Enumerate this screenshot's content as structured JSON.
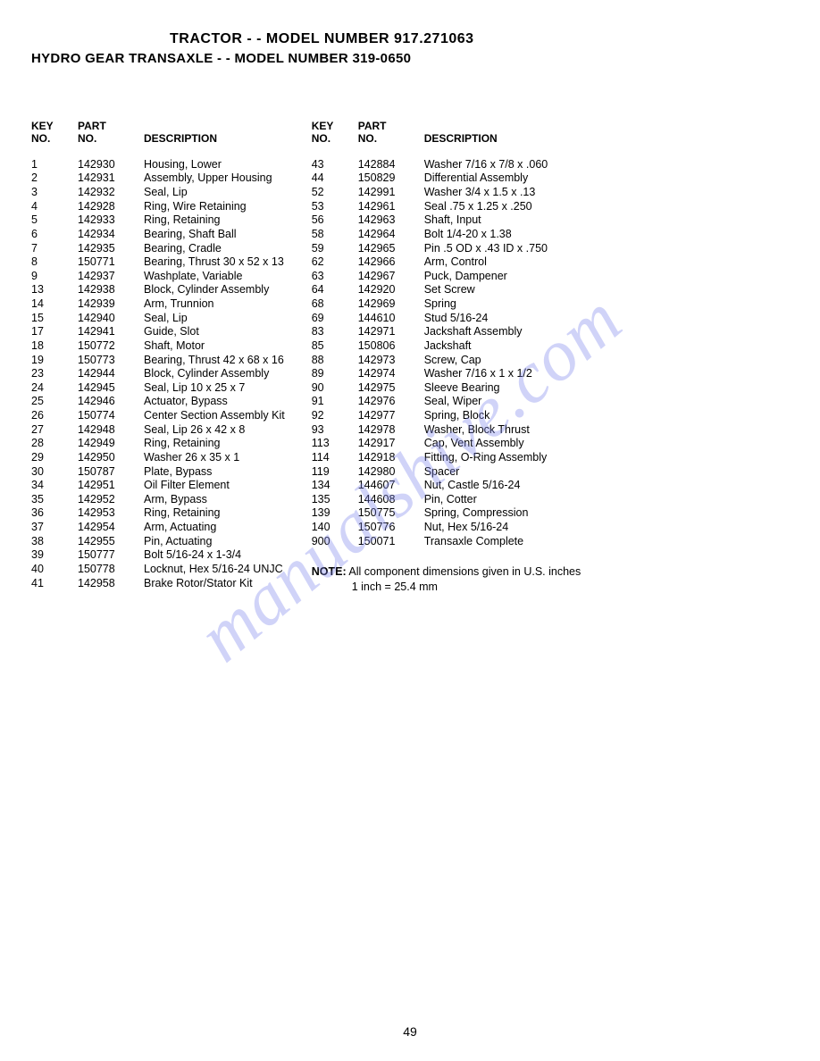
{
  "header": {
    "title1": "TRACTOR - - MODEL NUMBER 917.271063",
    "title2": "HYDRO GEAR TRANSAXLE - - MODEL NUMBER 319-0650"
  },
  "table": {
    "headers": {
      "key_line1": "KEY",
      "key_line2": "NO.",
      "part_line1": "PART",
      "part_line2": "NO.",
      "description": "DESCRIPTION"
    },
    "left_rows": [
      {
        "key": "1",
        "part": "142930",
        "desc": "Housing, Lower"
      },
      {
        "key": "2",
        "part": "142931",
        "desc": "Assembly, Upper Housing"
      },
      {
        "key": "3",
        "part": "142932",
        "desc": "Seal, Lip"
      },
      {
        "key": "4",
        "part": "142928",
        "desc": "Ring, Wire Retaining"
      },
      {
        "key": "5",
        "part": "142933",
        "desc": "Ring, Retaining"
      },
      {
        "key": "6",
        "part": "142934",
        "desc": "Bearing, Shaft Ball"
      },
      {
        "key": "7",
        "part": "142935",
        "desc": "Bearing, Cradle"
      },
      {
        "key": "8",
        "part": "150771",
        "desc": "Bearing, Thrust  30 x 52 x 13"
      },
      {
        "key": "9",
        "part": "142937",
        "desc": "Washplate, Variable"
      },
      {
        "key": "13",
        "part": "142938",
        "desc": "Block, Cylinder Assembly"
      },
      {
        "key": "14",
        "part": "142939",
        "desc": "Arm, Trunnion"
      },
      {
        "key": "15",
        "part": "142940",
        "desc": "Seal, Lip"
      },
      {
        "key": "17",
        "part": "142941",
        "desc": "Guide, Slot"
      },
      {
        "key": "18",
        "part": "150772",
        "desc": "Shaft, Motor"
      },
      {
        "key": "19",
        "part": "150773",
        "desc": "Bearing, Thrust  42 x 68 x 16"
      },
      {
        "key": "23",
        "part": "142944",
        "desc": "Block, Cylinder Assembly"
      },
      {
        "key": "24",
        "part": "142945",
        "desc": "Seal, Lip  10 x 25 x 7"
      },
      {
        "key": "25",
        "part": "142946",
        "desc": "Actuator, Bypass"
      },
      {
        "key": "26",
        "part": "150774",
        "desc": "Center Section Assembly Kit"
      },
      {
        "key": "27",
        "part": "142948",
        "desc": "Seal, Lip  26 x 42 x 8"
      },
      {
        "key": "28",
        "part": "142949",
        "desc": "Ring, Retaining"
      },
      {
        "key": "29",
        "part": "142950",
        "desc": "Washer  26 x 35 x 1"
      },
      {
        "key": "30",
        "part": "150787",
        "desc": "Plate, Bypass"
      },
      {
        "key": "34",
        "part": "142951",
        "desc": "Oil Filter Element"
      },
      {
        "key": "35",
        "part": "142952",
        "desc": "Arm, Bypass"
      },
      {
        "key": "36",
        "part": "142953",
        "desc": "Ring, Retaining"
      },
      {
        "key": "37",
        "part": "142954",
        "desc": "Arm, Actuating"
      },
      {
        "key": "38",
        "part": "142955",
        "desc": "Pin, Actuating"
      },
      {
        "key": "39",
        "part": "150777",
        "desc": "Bolt  5/16-24 x 1-3/4"
      },
      {
        "key": "40",
        "part": "150778",
        "desc": "Locknut, Hex  5/16-24 UNJC"
      },
      {
        "key": "41",
        "part": "142958",
        "desc": "Brake Rotor/Stator Kit"
      }
    ],
    "right_rows": [
      {
        "key": "43",
        "part": "142884",
        "desc": "Washer  7/16 x 7/8 x .060"
      },
      {
        "key": "44",
        "part": "150829",
        "desc": "Differential Assembly"
      },
      {
        "key": "52",
        "part": "142991",
        "desc": "Washer  3/4 x 1.5 x .13"
      },
      {
        "key": "53",
        "part": "142961",
        "desc": "Seal  .75 x 1.25 x .250"
      },
      {
        "key": "56",
        "part": "142963",
        "desc": "Shaft, Input"
      },
      {
        "key": "58",
        "part": "142964",
        "desc": "Bolt  1/4-20 x 1.38"
      },
      {
        "key": "59",
        "part": "142965",
        "desc": "Pin  .5 OD x .43 ID x .750"
      },
      {
        "key": "62",
        "part": "142966",
        "desc": "Arm, Control"
      },
      {
        "key": "63",
        "part": "142967",
        "desc": "Puck, Dampener"
      },
      {
        "key": "64",
        "part": "142920",
        "desc": "Set Screw"
      },
      {
        "key": "68",
        "part": "142969",
        "desc": "Spring"
      },
      {
        "key": "69",
        "part": "144610",
        "desc": "Stud  5/16-24"
      },
      {
        "key": "83",
        "part": "142971",
        "desc": "Jackshaft Assembly"
      },
      {
        "key": "85",
        "part": "150806",
        "desc": "Jackshaft"
      },
      {
        "key": "88",
        "part": "142973",
        "desc": "Screw, Cap"
      },
      {
        "key": "89",
        "part": "142974",
        "desc": "Washer  7/16 x 1 x 1/2"
      },
      {
        "key": "90",
        "part": "142975",
        "desc": "Sleeve Bearing"
      },
      {
        "key": "91",
        "part": "142976",
        "desc": "Seal, Wiper"
      },
      {
        "key": "92",
        "part": "142977",
        "desc": "Spring, Block"
      },
      {
        "key": "93",
        "part": "142978",
        "desc": "Washer, Block Thrust"
      },
      {
        "key": "113",
        "part": "142917",
        "desc": "Cap, Vent Assembly"
      },
      {
        "key": "114",
        "part": "142918",
        "desc": "Fitting, O-Ring Assembly"
      },
      {
        "key": "119",
        "part": "142980",
        "desc": "Spacer"
      },
      {
        "key": "134",
        "part": "144607",
        "desc": "Nut, Castle  5/16-24"
      },
      {
        "key": "135",
        "part": "144608",
        "desc": "Pin, Cotter"
      },
      {
        "key": "139",
        "part": "150775",
        "desc": "Spring, Compression"
      },
      {
        "key": "140",
        "part": "150776",
        "desc": "Nut, Hex  5/16-24"
      },
      {
        "key": "900",
        "part": "150071",
        "desc": "Transaxle Complete"
      }
    ]
  },
  "note": {
    "label": "NOTE:",
    "text1": " All component dimensions given in U.S. inches",
    "text2": "1 inch = 25.4 mm"
  },
  "watermark": "manualshive.com",
  "page_number": "49"
}
